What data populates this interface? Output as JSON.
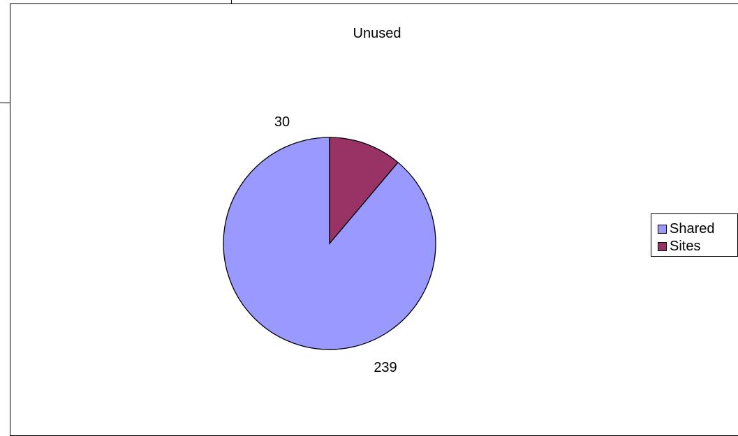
{
  "chart_data": {
    "type": "pie",
    "title": "Unused",
    "categories": [
      "Shared",
      "Sites"
    ],
    "values": [
      239,
      30
    ],
    "data_labels": [
      "239",
      "30"
    ],
    "colors": [
      "#9999FF",
      "#993366"
    ],
    "start_angle": "12 o'clock",
    "direction": "counter-clockwise",
    "legend": "right"
  }
}
